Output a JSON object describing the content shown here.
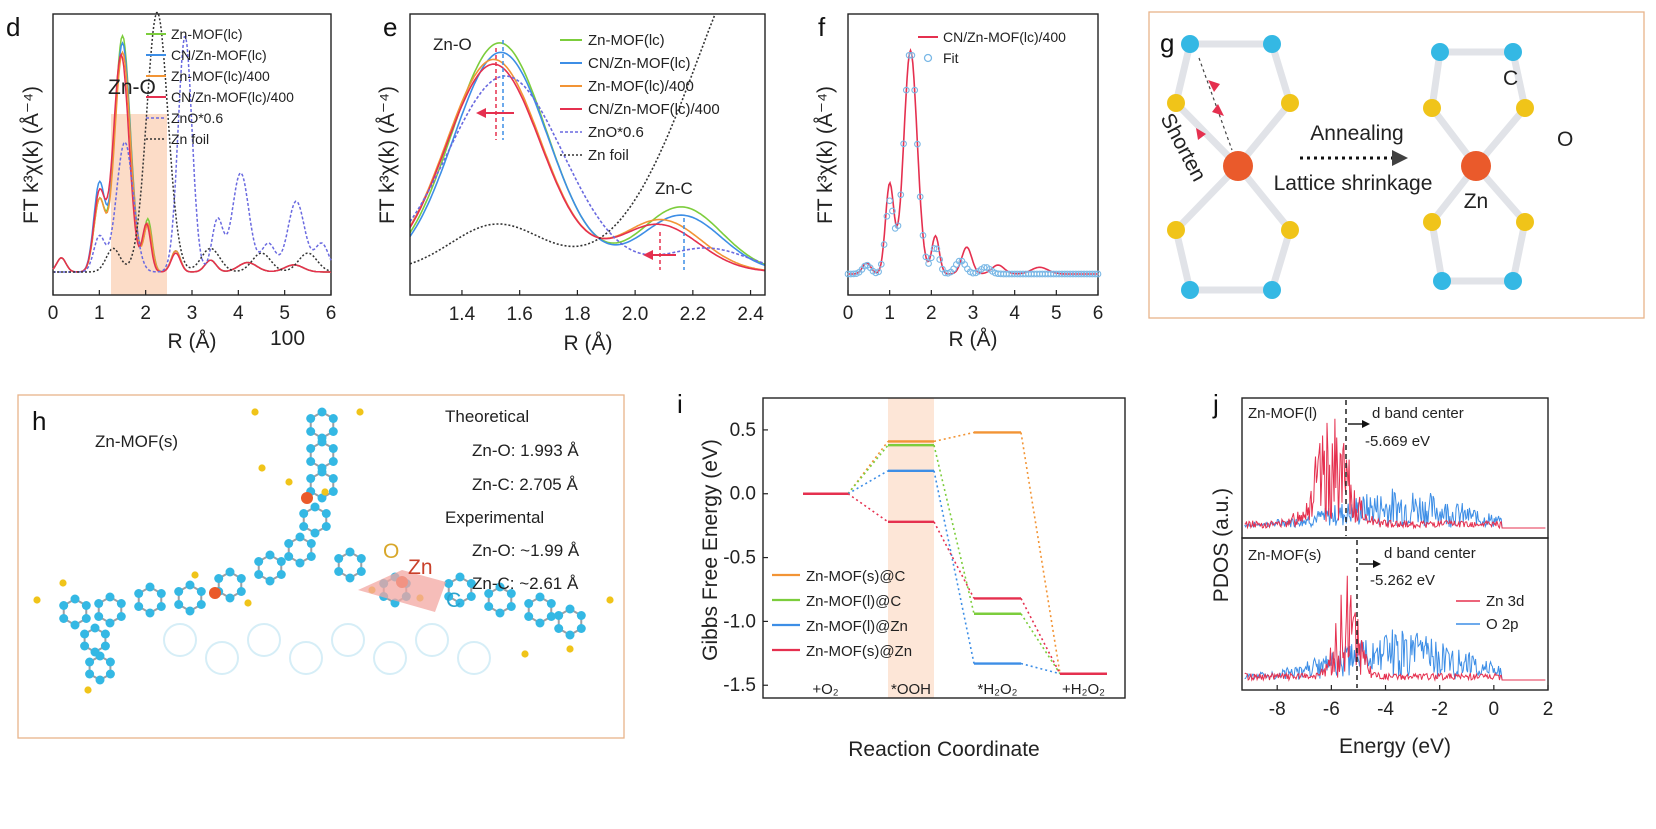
{
  "colors": {
    "green": "#7ccd3c",
    "blue": "#3d8ee6",
    "orange": "#f29435",
    "red": "#e5304f",
    "violet": "#6a6ae0",
    "dark": "#333333",
    "fit": "#7ab8e6",
    "shade": "#fbd6bd",
    "zn": "#ea5a2b",
    "c_atom": "#34b8e4",
    "o_atom": "#f0c419",
    "frame": "#e8b48a"
  },
  "chart_data": [
    {
      "panel": "d",
      "type": "line",
      "xlabel": "R (Å)",
      "ylabel": "FT k³χ(k) (Å⁻⁴)",
      "xlim": [
        0,
        6
      ],
      "xticks": [
        "0",
        "1",
        "2",
        "3",
        "4",
        "5",
        "6"
      ],
      "annotations": [
        "Zn-O",
        "100"
      ],
      "shaded_region": [
        1.22,
        2.42
      ],
      "series": [
        {
          "name": "Zn-MOF(lc)",
          "color": "green",
          "peaks": [
            [
              0.18,
              0.06,
              0.1
            ],
            [
              1.0,
              0.3,
              0.12
            ],
            [
              1.5,
              1.0,
              0.17
            ],
            [
              2.05,
              0.22,
              0.09
            ],
            [
              2.65,
              0.09,
              0.1
            ],
            [
              3.4,
              0.05,
              0.12
            ],
            [
              4.2,
              0.04,
              0.2
            ],
            [
              5.2,
              0.03,
              0.2
            ]
          ]
        },
        {
          "name": "CN/Zn-MOF(lc)",
          "color": "blue",
          "peaks": [
            [
              0.18,
              0.06,
              0.1
            ],
            [
              1.0,
              0.37,
              0.12
            ],
            [
              1.5,
              0.97,
              0.17
            ],
            [
              2.05,
              0.2,
              0.09
            ],
            [
              2.65,
              0.09,
              0.1
            ],
            [
              3.4,
              0.05,
              0.12
            ],
            [
              4.2,
              0.04,
              0.2
            ],
            [
              5.2,
              0.03,
              0.2
            ]
          ]
        },
        {
          "name": "Zn-MOF(lc)/400",
          "color": "orange",
          "peaks": [
            [
              0.18,
              0.06,
              0.1
            ],
            [
              1.0,
              0.3,
              0.12
            ],
            [
              1.5,
              0.93,
              0.17
            ],
            [
              2.05,
              0.2,
              0.09
            ],
            [
              2.65,
              0.09,
              0.1
            ],
            [
              3.4,
              0.05,
              0.12
            ],
            [
              4.2,
              0.04,
              0.2
            ],
            [
              5.2,
              0.03,
              0.2
            ]
          ]
        },
        {
          "name": "CN/Zn-MOF(lc)/400",
          "color": "red",
          "peaks": [
            [
              0.18,
              0.06,
              0.1
            ],
            [
              1.0,
              0.33,
              0.12
            ],
            [
              1.47,
              0.92,
              0.17
            ],
            [
              2.02,
              0.2,
              0.09
            ],
            [
              2.65,
              0.08,
              0.1
            ],
            [
              3.4,
              0.05,
              0.12
            ],
            [
              4.2,
              0.04,
              0.2
            ],
            [
              5.2,
              0.03,
              0.2
            ]
          ]
        },
        {
          "name": "ZnO*0.6",
          "color": "violet",
          "dash": "3,2",
          "peaks": [
            [
              1.0,
              0.15,
              0.12
            ],
            [
              1.55,
              0.55,
              0.18
            ],
            [
              2.85,
              1.0,
              0.15
            ],
            [
              3.55,
              0.22,
              0.12
            ],
            [
              4.05,
              0.42,
              0.18
            ],
            [
              4.65,
              0.12,
              0.15
            ],
            [
              5.25,
              0.3,
              0.18
            ],
            [
              5.8,
              0.12,
              0.15
            ]
          ]
        },
        {
          "name": "Zn foil",
          "color": "dark",
          "dash": "2,2",
          "peaks": [
            [
              1.3,
              0.1,
              0.15
            ],
            [
              2.25,
              1.1,
              0.23
            ],
            [
              3.4,
              0.1,
              0.2
            ],
            [
              4.5,
              0.08,
              0.2
            ],
            [
              5.5,
              0.08,
              0.2
            ]
          ]
        }
      ]
    },
    {
      "panel": "e",
      "type": "line",
      "xlabel": "R (Å)",
      "ylabel": "FT k³χ(k) (Å⁻⁴)",
      "xlim": [
        1.22,
        2.45
      ],
      "xticks": [
        "1.4",
        "1.6",
        "1.8",
        "2.0",
        "2.2",
        "2.4"
      ],
      "annotations": [
        "Zn-O",
        "Zn-C"
      ],
      "series": [
        {
          "name": "Zn-MOF(lc)",
          "color": "green",
          "peaks": [
            [
              1.53,
              0.97,
              0.165
            ],
            [
              2.16,
              0.275,
              0.14
            ]
          ]
        },
        {
          "name": "CN/Zn-MOF(lc)",
          "color": "blue",
          "peaks": [
            [
              1.535,
              0.93,
              0.165
            ],
            [
              2.16,
              0.24,
              0.14
            ]
          ]
        },
        {
          "name": "Zn-MOF(lc)/400",
          "color": "orange",
          "peaks": [
            [
              1.51,
              0.9,
              0.165
            ],
            [
              2.09,
              0.22,
              0.14
            ]
          ]
        },
        {
          "name": "CN/Zn-MOF(lc)/400",
          "color": "red",
          "peaks": [
            [
              1.51,
              0.88,
              0.165
            ],
            [
              2.08,
              0.2,
              0.14
            ]
          ]
        },
        {
          "name": "ZnO*0.6",
          "color": "violet",
          "dash": "3,2",
          "peaks": [
            [
              1.55,
              0.83,
              0.2
            ],
            [
              2.25,
              0.1,
              0.14
            ]
          ]
        },
        {
          "name": "Zn foil",
          "color": "dark",
          "dash": "2,2",
          "peaks": [
            [
              1.52,
              0.2,
              0.16
            ],
            [
              2.5,
              1.5,
              0.28
            ]
          ]
        }
      ]
    },
    {
      "panel": "f",
      "type": "line",
      "xlabel": "R (Å)",
      "ylabel": "FT k³χ(k) (Å⁻⁴)",
      "xlim": [
        0,
        6
      ],
      "xticks": [
        "0",
        "1",
        "2",
        "3",
        "4",
        "5",
        "6"
      ],
      "series": [
        {
          "name": "CN/Zn-MOF(lc)/400",
          "color": "red",
          "peaks": [
            [
              0.45,
              0.05,
              0.1
            ],
            [
              1.0,
              0.4,
              0.1
            ],
            [
              1.5,
              1.0,
              0.16
            ],
            [
              2.1,
              0.17,
              0.09
            ],
            [
              2.85,
              0.12,
              0.12
            ],
            [
              3.6,
              0.04,
              0.15
            ],
            [
              4.6,
              0.03,
              0.2
            ]
          ]
        },
        {
          "name": "Fit",
          "color": "fit",
          "peaks": [
            [
              0.45,
              0.04,
              0.1
            ],
            [
              1.0,
              0.32,
              0.1
            ],
            [
              1.5,
              1.0,
              0.16
            ],
            [
              2.1,
              0.12,
              0.09
            ],
            [
              2.7,
              0.06,
              0.12
            ],
            [
              3.3,
              0.03,
              0.12
            ]
          ]
        }
      ]
    },
    {
      "panel": "i",
      "type": "line",
      "xlabel": "Reaction Coordinate",
      "ylabel": "Gibbs Free Energy (eV)",
      "ylim": [
        -1.6,
        0.75
      ],
      "yticks": [
        "0.5",
        "0.0",
        "-0.5",
        "-1.0",
        "-1.5"
      ],
      "categories": [
        "+O₂",
        "*OOH",
        "*H₂O₂",
        "+H₂O₂"
      ],
      "series": [
        {
          "name": "Zn-MOF(s)@C",
          "color": "orange",
          "values": [
            0.0,
            0.41,
            0.48,
            -1.41
          ]
        },
        {
          "name": "Zn-MOF(l)@C",
          "color": "green",
          "values": [
            0.0,
            0.38,
            -0.94,
            -1.41
          ]
        },
        {
          "name": "Zn-MOF(l)@Zn",
          "color": "blue",
          "values": [
            0.0,
            0.18,
            -1.33,
            -1.41
          ]
        },
        {
          "name": "Zn-MOF(s)@Zn",
          "color": "red",
          "values": [
            0.0,
            -0.22,
            -0.82,
            -1.41
          ]
        }
      ]
    },
    {
      "panel": "j",
      "type": "line",
      "xlabel": "Energy (eV)",
      "ylabel": "PDOS (a.u.)",
      "xlim": [
        -9.3,
        2
      ],
      "xticks": [
        "-8",
        "-6",
        "-4",
        "-2",
        "0",
        "2"
      ],
      "subplots": [
        {
          "name": "Zn-MOF(l)",
          "d_band_center_label": "d band center",
          "d_band_center_value": "-5.669 eV",
          "d_band_center": -5.669
        },
        {
          "name": "Zn-MOF(s)",
          "d_band_center_label": "d band center",
          "d_band_center_value": "-5.262 eV",
          "d_band_center": -5.262
        }
      ],
      "series": [
        {
          "name": "Zn 3d",
          "color": "red"
        },
        {
          "name": "O 2p",
          "color": "blue"
        }
      ]
    }
  ],
  "panels": {
    "d": {
      "letter": "d",
      "ylabel": "FT k³χ(k) (Å⁻⁴)",
      "xlabel": "R (Å)",
      "annot_zno": "Zn-O",
      "annot_100": "100",
      "legend": [
        "Zn-MOF(lc)",
        "CN/Zn-MOF(lc)",
        "Zn-MOF(lc)/400",
        "CN/Zn-MOF(lc)/400",
        "ZnO*0.6",
        "Zn foil"
      ],
      "ticks": [
        "0",
        "1",
        "2",
        "3",
        "4",
        "5",
        "6"
      ]
    },
    "e": {
      "letter": "e",
      "ylabel": "FT k³χ(k) (Å⁻⁴)",
      "xlabel": "R (Å)",
      "annot_zno": "Zn-O",
      "annot_znc": "Zn-C",
      "legend": [
        "Zn-MOF(lc)",
        "CN/Zn-MOF(lc)",
        "Zn-MOF(lc)/400",
        "CN/Zn-MOF(lc)/400",
        "ZnO*0.6",
        "Zn foil"
      ],
      "ticks": [
        "1.4",
        "1.6",
        "1.8",
        "2.0",
        "2.2",
        "2.4"
      ]
    },
    "f": {
      "letter": "f",
      "ylabel": "FT k³χ(k) (Å⁻⁴)",
      "xlabel": "R (Å)",
      "legend": [
        "CN/Zn-MOF(lc)/400",
        "Fit"
      ],
      "ticks": [
        "0",
        "1",
        "2",
        "3",
        "4",
        "5",
        "6"
      ]
    },
    "g": {
      "letter": "g",
      "shorten": "Shorten",
      "annealing": "Annealing",
      "lattice": "Lattice shrinkage",
      "c": "C",
      "o": "O",
      "zn": "Zn"
    },
    "h": {
      "letter": "h",
      "title": "Zn-MOF(s)",
      "theo_head": "Theoretical",
      "theo_zno": "Zn-O: 1.993 Å",
      "theo_znc": "Zn-C: 2.705 Å",
      "exp_head": "Experimental",
      "exp_zno": "Zn-O: ~1.99 Å",
      "exp_znc": "Zn-C: ~2.61 Å",
      "o": "O",
      "zn": "Zn",
      "c": "C"
    },
    "i": {
      "letter": "i",
      "ylabel": "Gibbs Free Energy (eV)",
      "xlabel": "Reaction Coordinate",
      "legend": [
        "Zn-MOF(s)@C",
        "Zn-MOF(l)@C",
        "Zn-MOF(l)@Zn",
        "Zn-MOF(s)@Zn"
      ],
      "ticks": [
        "0.5",
        "0.0",
        "-0.5",
        "-1.0",
        "-1.5"
      ]
    },
    "j": {
      "letter": "j",
      "ylabel": "PDOS (a.u.)",
      "xlabel": "Energy (eV)",
      "top_title": "Zn-MOF(l)",
      "bot_title": "Zn-MOF(s)",
      "band_label": "d band center",
      "top_value": "-5.669 eV",
      "bot_value": "-5.262 eV",
      "legend": [
        "Zn 3d",
        "O 2p"
      ],
      "ticks": [
        "-8",
        "-6",
        "-4",
        "-2",
        "0",
        "2"
      ]
    }
  }
}
